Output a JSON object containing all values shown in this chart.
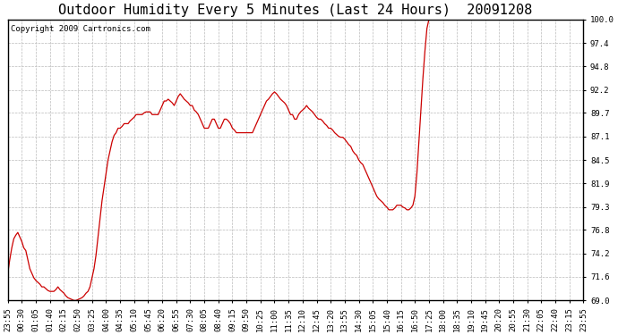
{
  "title": "Outdoor Humidity Every 5 Minutes (Last 24 Hours)  20091208",
  "copyright": "Copyright 2009 Cartronics.com",
  "line_color": "#cc0000",
  "background_color": "#ffffff",
  "plot_bg_color": "#ffffff",
  "grid_color": "#bbbbbb",
  "ylim": [
    69.0,
    100.0
  ],
  "yticks": [
    69.0,
    71.6,
    74.2,
    76.8,
    79.3,
    81.9,
    84.5,
    87.1,
    89.7,
    92.2,
    94.8,
    97.4,
    100.0
  ],
  "xtick_labels": [
    "23:55",
    "00:30",
    "01:05",
    "01:40",
    "02:15",
    "02:50",
    "03:25",
    "04:00",
    "04:35",
    "05:10",
    "05:45",
    "06:20",
    "06:55",
    "07:30",
    "08:05",
    "08:40",
    "09:15",
    "09:50",
    "10:25",
    "11:00",
    "11:35",
    "12:10",
    "12:45",
    "13:20",
    "13:55",
    "14:30",
    "15:05",
    "15:40",
    "16:15",
    "16:50",
    "17:25",
    "18:00",
    "18:35",
    "19:10",
    "19:45",
    "20:20",
    "20:55",
    "21:30",
    "22:05",
    "22:40",
    "23:15",
    "23:55"
  ],
  "humidity_data": [
    72.0,
    73.5,
    74.8,
    75.8,
    76.2,
    76.5,
    76.0,
    75.5,
    74.8,
    74.5,
    73.5,
    72.5,
    72.0,
    71.5,
    71.2,
    71.0,
    70.8,
    70.5,
    70.5,
    70.3,
    70.1,
    70.0,
    70.0,
    70.0,
    70.2,
    70.5,
    70.2,
    70.0,
    69.8,
    69.5,
    69.3,
    69.2,
    69.1,
    69.0,
    69.0,
    69.1,
    69.2,
    69.3,
    69.5,
    69.8,
    70.0,
    70.5,
    71.5,
    72.5,
    74.0,
    76.0,
    78.0,
    80.0,
    81.5,
    83.0,
    84.5,
    85.5,
    86.5,
    87.2,
    87.5,
    88.0,
    88.0,
    88.2,
    88.5,
    88.5,
    88.5,
    88.8,
    89.0,
    89.2,
    89.5,
    89.5,
    89.5,
    89.5,
    89.7,
    89.8,
    89.8,
    89.8,
    89.5,
    89.5,
    89.5,
    89.5,
    90.0,
    90.5,
    91.0,
    91.0,
    91.2,
    91.0,
    90.8,
    90.5,
    91.0,
    91.5,
    91.8,
    91.5,
    91.2,
    91.0,
    90.8,
    90.5,
    90.5,
    90.0,
    89.8,
    89.5,
    89.0,
    88.5,
    88.0,
    88.0,
    88.0,
    88.5,
    89.0,
    89.0,
    88.5,
    88.0,
    88.0,
    88.5,
    89.0,
    89.0,
    88.8,
    88.5,
    88.0,
    87.8,
    87.5,
    87.5,
    87.5,
    87.5,
    87.5,
    87.5,
    87.5,
    87.5,
    87.5,
    88.0,
    88.5,
    89.0,
    89.5,
    90.0,
    90.5,
    91.0,
    91.2,
    91.5,
    91.8,
    92.0,
    91.8,
    91.5,
    91.2,
    91.0,
    90.8,
    90.5,
    90.0,
    89.5,
    89.5,
    89.0,
    89.0,
    89.5,
    89.8,
    90.0,
    90.2,
    90.5,
    90.2,
    90.0,
    89.8,
    89.5,
    89.2,
    89.0,
    89.0,
    88.8,
    88.5,
    88.3,
    88.0,
    88.0,
    87.8,
    87.5,
    87.3,
    87.1,
    87.0,
    87.0,
    86.8,
    86.5,
    86.2,
    86.0,
    85.5,
    85.2,
    85.0,
    84.5,
    84.2,
    84.0,
    83.5,
    83.0,
    82.5,
    82.0,
    81.5,
    81.0,
    80.5,
    80.2,
    80.0,
    79.8,
    79.5,
    79.3,
    79.0,
    79.0,
    79.0,
    79.2,
    79.5,
    79.5,
    79.5,
    79.3,
    79.2,
    79.0,
    79.0,
    79.2,
    79.5,
    80.5,
    83.0,
    86.5,
    90.0,
    93.5,
    96.5,
    99.0,
    100.0,
    100.0,
    100.0,
    100.0,
    100.0,
    100.0,
    100.0,
    100.0,
    100.0,
    100.0,
    100.0,
    100.0,
    100.0,
    100.0,
    100.0,
    100.0,
    100.0,
    100.0,
    100.0,
    100.0,
    100.0,
    100.0,
    100.0,
    100.0,
    100.0,
    100.0,
    100.0,
    100.0,
    100.0,
    100.0,
    100.0,
    100.0,
    100.0,
    100.0,
    100.0,
    100.0,
    100.0,
    100.0,
    100.0,
    100.0,
    100.0,
    100.0,
    100.0,
    100.0,
    100.0,
    100.0,
    100.0,
    100.0,
    100.0,
    100.0,
    100.0,
    100.0,
    100.0,
    100.0,
    100.0,
    100.0,
    100.0,
    100.0,
    100.0,
    100.0,
    100.0,
    100.0,
    100.0,
    100.0,
    100.0,
    100.0,
    100.0,
    100.0,
    100.0,
    100.0,
    100.0,
    100.0,
    100.0,
    100.0,
    100.0,
    100.0,
    100.0,
    100.0
  ],
  "title_fontsize": 11,
  "tick_fontsize": 6.5,
  "copyright_fontsize": 6.5
}
